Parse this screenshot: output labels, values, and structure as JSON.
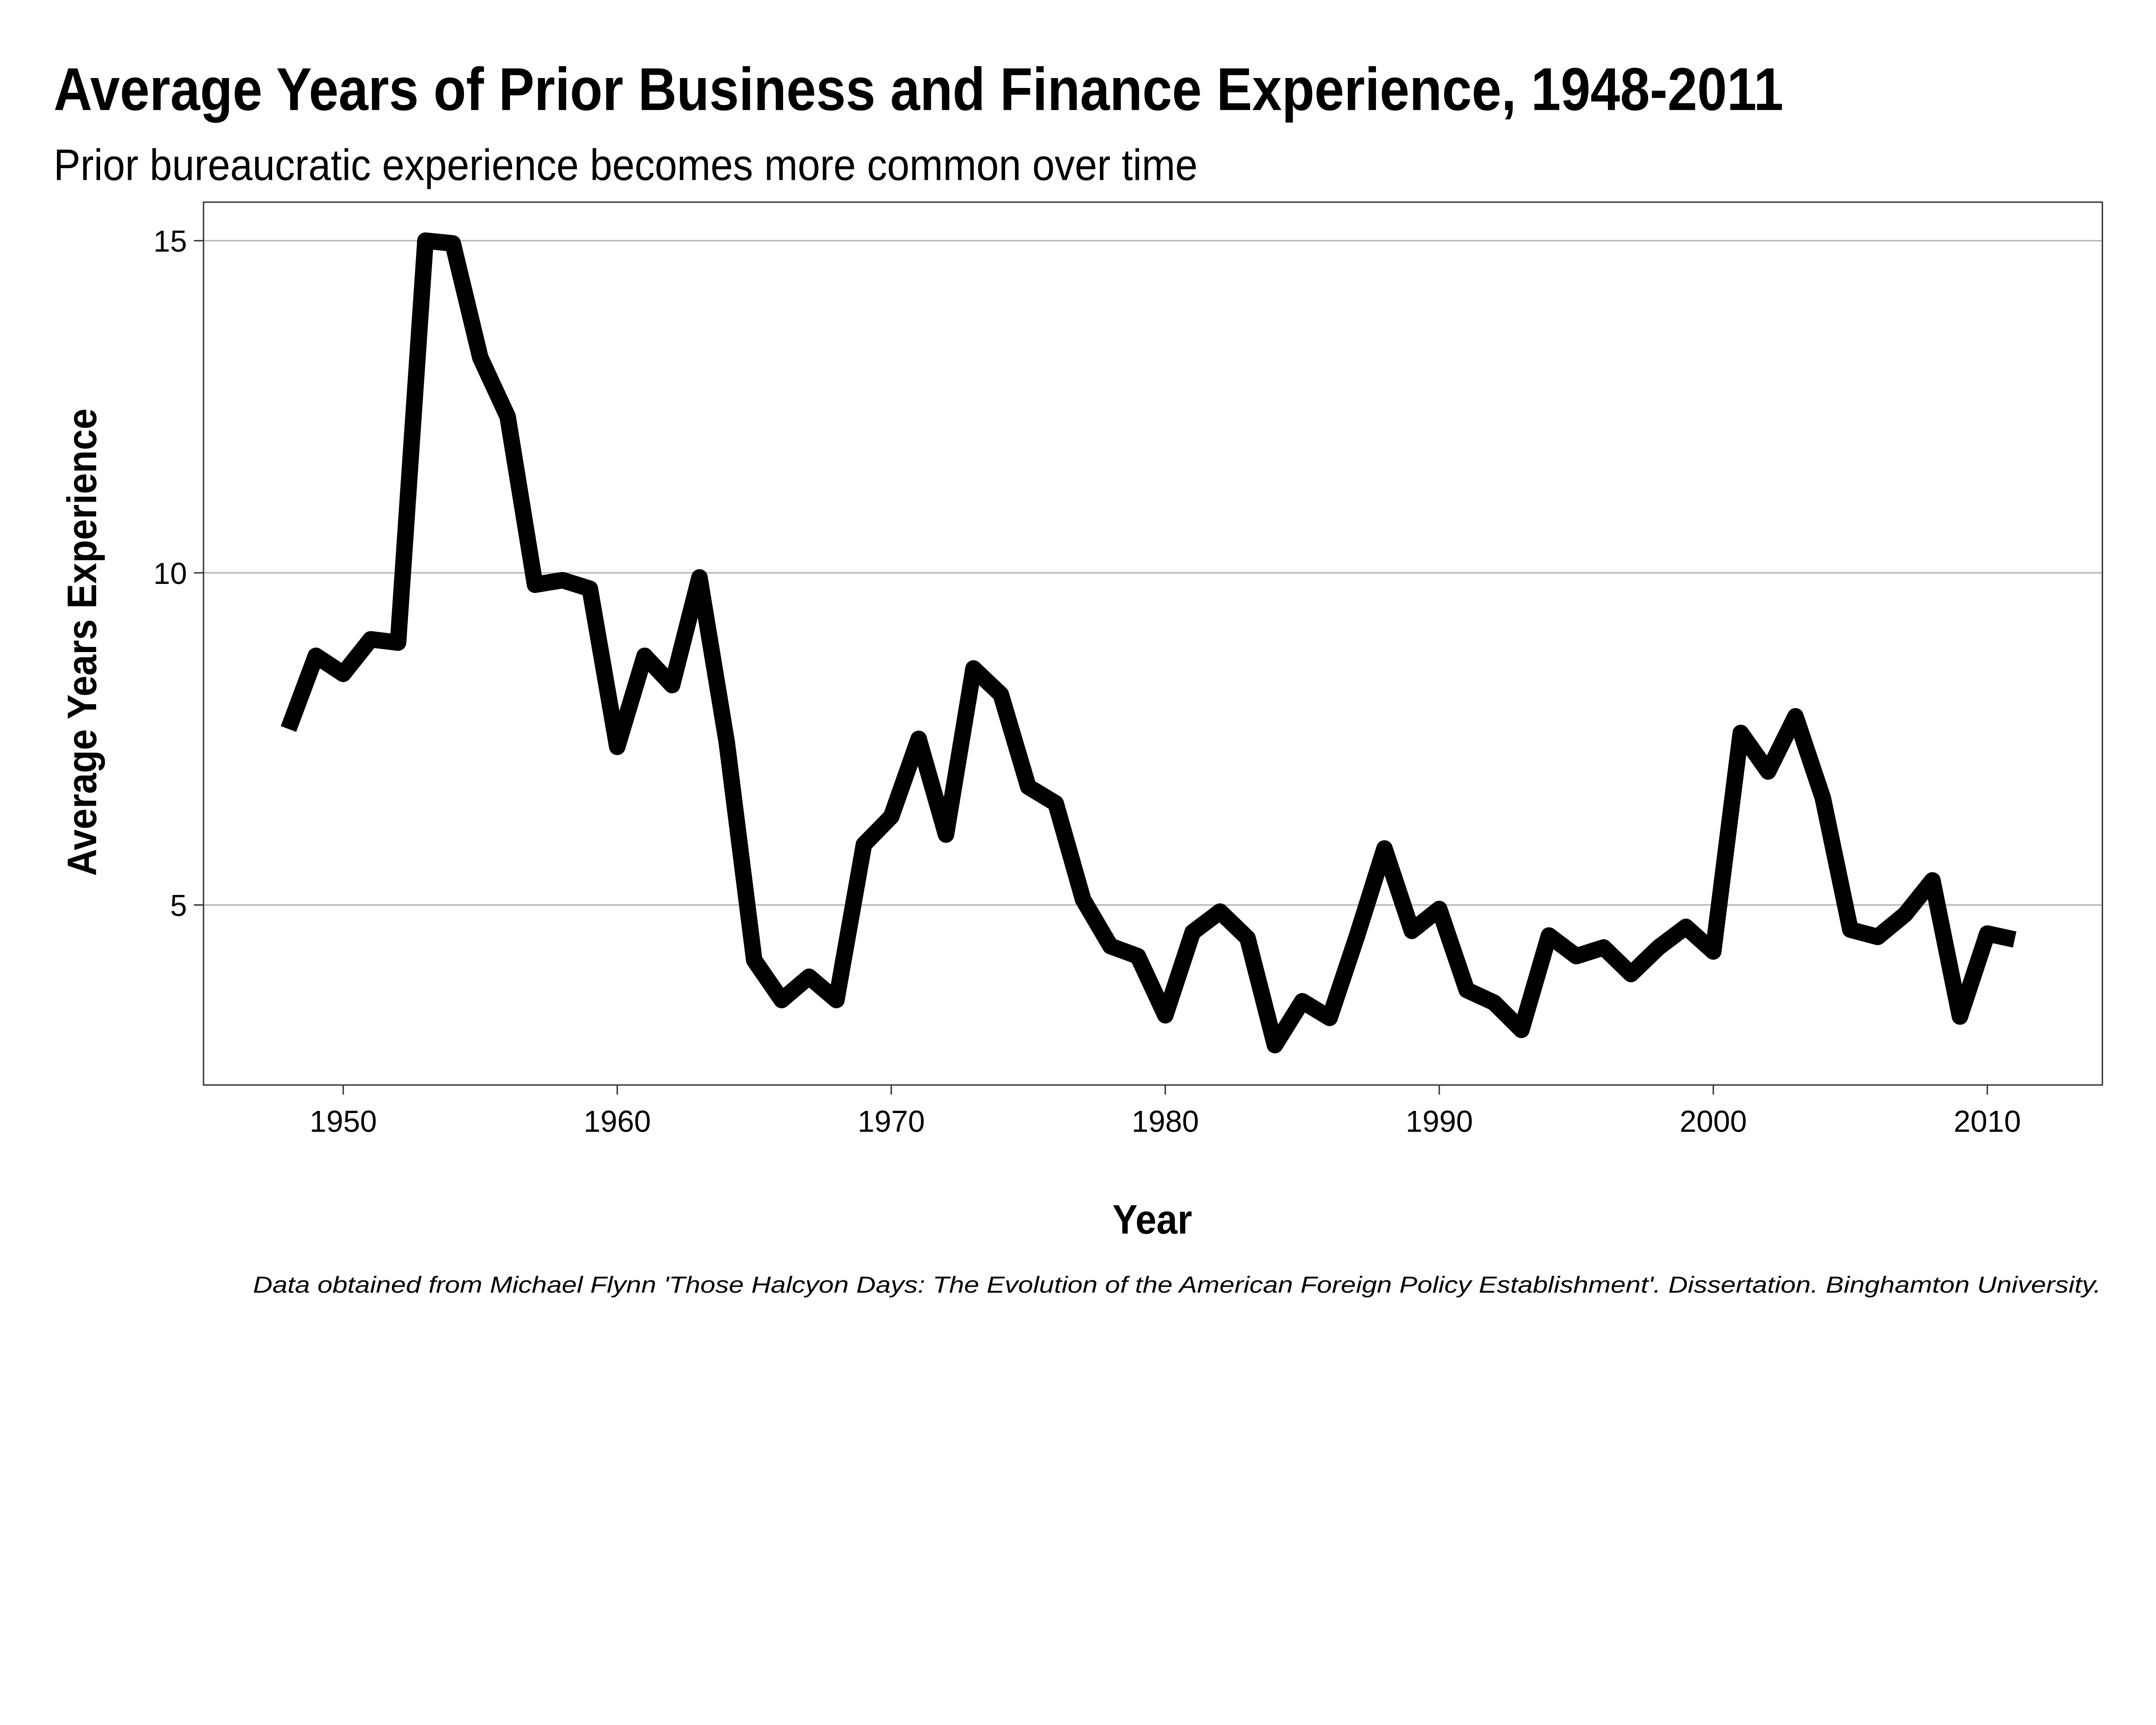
{
  "chart_data": {
    "type": "line",
    "title": "Average Years of Prior Business and Finance Experience, 1948-2011",
    "subtitle": "Prior bureaucratic experience becomes more common over time",
    "xlabel": "Year",
    "ylabel": "Average Years Experience",
    "caption": "Data obtained from Michael Flynn 'Those Halcyon Days: The Evolution of the American Foreign Policy Establishment'. Dissertation. Binghamton University.",
    "xlim": [
      1944.9,
      2014.2
    ],
    "ylim": [
      2.29,
      15.58
    ],
    "x_ticks": [
      1950,
      1960,
      1970,
      1980,
      1990,
      2000,
      2010
    ],
    "y_ticks": [
      5,
      10,
      15
    ],
    "grid": "horizontal",
    "line_color": "#000000",
    "series": [
      {
        "name": "Average Years Experience",
        "x": [
          1948,
          1949,
          1950,
          1951,
          1952,
          1953,
          1954,
          1955,
          1956,
          1957,
          1958,
          1959,
          1960,
          1961,
          1962,
          1963,
          1964,
          1965,
          1966,
          1967,
          1968,
          1969,
          1970,
          1971,
          1972,
          1973,
          1974,
          1975,
          1976,
          1977,
          1978,
          1979,
          1980,
          1981,
          1982,
          1983,
          1984,
          1985,
          1986,
          1987,
          1988,
          1989,
          1990,
          1991,
          1992,
          1993,
          1994,
          1995,
          1996,
          1997,
          1998,
          1999,
          2000,
          2001,
          2002,
          2003,
          2004,
          2005,
          2006,
          2007,
          2008,
          2009,
          2010,
          2011
        ],
        "values": [
          7.65,
          8.75,
          8.48,
          9.0,
          8.95,
          15.0,
          14.96,
          13.24,
          12.35,
          9.82,
          9.89,
          9.76,
          7.38,
          8.75,
          8.31,
          9.93,
          7.44,
          4.17,
          3.57,
          3.92,
          3.57,
          5.91,
          6.33,
          7.5,
          6.06,
          8.56,
          8.17,
          6.78,
          6.53,
          5.08,
          4.38,
          4.23,
          3.34,
          4.59,
          4.9,
          4.5,
          2.89,
          3.55,
          3.3,
          4.54,
          5.85,
          4.61,
          4.94,
          3.72,
          3.53,
          3.12,
          4.54,
          4.23,
          4.36,
          3.96,
          4.36,
          4.67,
          4.3,
          7.59,
          7.01,
          7.84,
          6.61,
          4.63,
          4.52,
          4.86,
          5.37,
          3.32,
          4.57,
          4.48
        ]
      }
    ]
  }
}
